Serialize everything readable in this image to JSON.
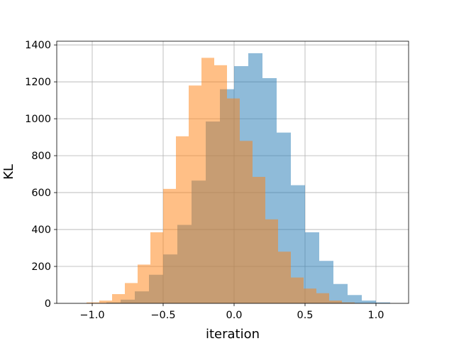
{
  "chart_data": {
    "type": "bar",
    "subtype": "histogram",
    "xlabel": "iteration",
    "ylabel": "KL",
    "xlim": [
      -1.25,
      1.23
    ],
    "ylim": [
      0,
      1420
    ],
    "xticks": [
      -1.0,
      -0.5,
      0.0,
      0.5,
      1.0
    ],
    "xtick_labels": [
      "−1.0",
      "−0.5",
      "0.0",
      "0.5",
      "1.0"
    ],
    "yticks": [
      0,
      200,
      400,
      600,
      800,
      1000,
      1200,
      1400
    ],
    "ytick_labels": [
      "0",
      "200",
      "400",
      "600",
      "800",
      "1000",
      "1200",
      "1400"
    ],
    "grid": true,
    "series": [
      {
        "color": "#1f77b4",
        "opacity": 0.5,
        "bin_edges": [
          -0.9,
          -0.8,
          -0.7,
          -0.6,
          -0.5,
          -0.4,
          -0.3,
          -0.2,
          -0.1,
          0.0,
          0.1,
          0.2,
          0.3,
          0.4,
          0.5,
          0.6,
          0.7,
          0.8,
          0.9,
          1.0,
          1.1
        ],
        "counts": [
          5,
          20,
          65,
          155,
          265,
          425,
          665,
          985,
          1160,
          1285,
          1355,
          1220,
          925,
          640,
          385,
          230,
          105,
          45,
          15,
          5
        ]
      },
      {
        "color": "#ff7f0e",
        "opacity": 0.5,
        "bin_edges": [
          -1.04,
          -0.95,
          -0.86,
          -0.77,
          -0.68,
          -0.59,
          -0.5,
          -0.41,
          -0.32,
          -0.23,
          -0.14,
          -0.05,
          0.04,
          0.13,
          0.22,
          0.31,
          0.4,
          0.49,
          0.58,
          0.67,
          0.76,
          0.85
        ],
        "counts": [
          5,
          15,
          50,
          110,
          210,
          385,
          620,
          905,
          1180,
          1330,
          1290,
          1110,
          880,
          685,
          455,
          280,
          140,
          80,
          55,
          15,
          5
        ]
      }
    ]
  }
}
